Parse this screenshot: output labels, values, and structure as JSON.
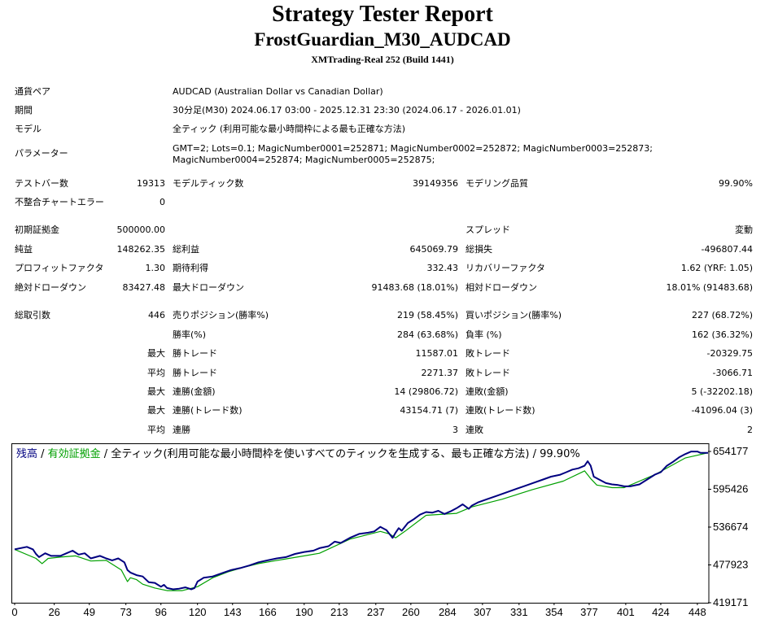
{
  "header": {
    "title": "Strategy Tester Report",
    "subtitle": "FrostGuardian_M30_AUDCAD",
    "server": "XMTrading-Real 252 (Build 1441)"
  },
  "info": {
    "symbol_label": "通貨ペア",
    "symbol": "AUDCAD (Australian Dollar vs Canadian Dollar)",
    "period_label": "期間",
    "period": "30分足(M30) 2024.06.17 03:00 - 2025.12.31 23:30 (2024.06.17 - 2026.01.01)",
    "model_label": "モデル",
    "model": "全ティック (利用可能な最小時間枠による最も正確な方法)",
    "params_label": "パラメーター",
    "params": "GMT=2; Lots=0.1; MagicNumber0001=252871; MagicNumber0002=252872; MagicNumber0003=252873; MagicNumber0004=252874; MagicNumber0005=252875;"
  },
  "stats": {
    "bars_label": "テストバー数",
    "bars": "19313",
    "ticks_label": "モデルティック数",
    "ticks": "39149356",
    "quality_label": "モデリング品質",
    "quality": "99.90%",
    "mismatch_label": "不整合チャートエラー",
    "mismatch": "0",
    "deposit_label": "初期証拠金",
    "deposit": "500000.00",
    "spread_label": "スプレッド",
    "spread": "変動",
    "net_label": "純益",
    "net": "148262.35",
    "gross_profit_label": "総利益",
    "gross_profit": "645069.79",
    "gross_loss_label": "総損失",
    "gross_loss": "-496807.44",
    "pf_label": "プロフィットファクタ",
    "pf": "1.30",
    "payoff_label": "期待利得",
    "payoff": "332.43",
    "rf_label": "リカバリーファクタ",
    "rf": "1.62 (YRF: 1.05)",
    "abs_dd_label": "絶対ドローダウン",
    "abs_dd": "83427.48",
    "max_dd_label": "最大ドローダウン",
    "max_dd": "91483.68 (18.01%)",
    "rel_dd_label": "相対ドローダウン",
    "rel_dd": "18.01% (91483.68)",
    "trades_label": "総取引数",
    "trades": "446",
    "short_label": "売りポジション(勝率%)",
    "short": "219 (58.45%)",
    "long_label": "買いポジション(勝率%)",
    "long": "227 (68.72%)",
    "win_label": "勝率(%)",
    "win": "284 (63.68%)",
    "loss_label": "負率 (%)",
    "loss": "162 (36.32%)",
    "max_word": "最大",
    "avg_word": "平均",
    "win_trade_label": "勝トレード",
    "loss_trade_label": "敗トレード",
    "max_win": "11587.01",
    "max_loss": "-20329.75",
    "avg_win": "2271.37",
    "avg_loss": "-3066.71",
    "cons_win_amt_label": "連勝(金額)",
    "cons_win_amt": "14 (29806.72)",
    "cons_loss_amt_label": "連敗(金額)",
    "cons_loss_amt": "5 (-32202.18)",
    "cons_win_max_label": "連勝(トレード数)",
    "cons_win_max": "43154.71 (7)",
    "cons_loss_max_label": "連敗(トレード数)",
    "cons_loss_max": "-41096.04 (3)",
    "cons_win_avg_label": "連勝",
    "cons_win_avg": "3",
    "cons_loss_avg_label": "連敗",
    "cons_loss_avg": "2"
  },
  "chart_data": {
    "type": "line",
    "legend": [
      "残高",
      "/",
      "有効証拠金",
      "/",
      "全ティック(利用可能な最小時間枠を使いすべてのティックを生成する、最も正確な方法)",
      "/",
      "99.90%"
    ],
    "legend_colors": [
      "#000080",
      "#000000",
      "#00a000",
      "#000000",
      "#000000",
      "#000000",
      "#000000"
    ],
    "x_ticks": [
      "0",
      "26",
      "49",
      "73",
      "96",
      "120",
      "143",
      "166",
      "190",
      "213",
      "237",
      "260",
      "284",
      "307",
      "331",
      "354",
      "377",
      "401",
      "424",
      "448"
    ],
    "y_ticks": [
      "654177",
      "595426",
      "536674",
      "477923",
      "419171"
    ],
    "ylim": [
      419171,
      654177
    ],
    "xlim": [
      0,
      455
    ],
    "series": [
      {
        "name": "残高",
        "color": "#000080",
        "x": [
          0,
          8,
          12,
          14,
          16,
          20,
          24,
          30,
          34,
          38,
          42,
          46,
          50,
          56,
          60,
          64,
          68,
          72,
          74,
          76,
          80,
          84,
          88,
          92,
          96,
          98,
          100,
          104,
          108,
          112,
          116,
          118,
          120,
          124,
          130,
          136,
          142,
          148,
          154,
          160,
          166,
          172,
          178,
          184,
          190,
          196,
          200,
          206,
          210,
          214,
          220,
          226,
          232,
          236,
          240,
          244,
          248,
          250,
          252,
          254,
          258,
          262,
          266,
          270,
          274,
          278,
          282,
          286,
          290,
          294,
          298,
          300,
          304,
          310,
          316,
          322,
          328,
          334,
          340,
          346,
          352,
          358,
          362,
          366,
          370,
          374,
          376,
          378,
          380,
          384,
          388,
          392,
          396,
          400,
          404,
          410,
          416,
          420,
          424,
          428,
          432,
          436,
          440,
          444,
          448,
          450,
          455
        ],
        "y": [
          502000,
          506000,
          502000,
          495000,
          490000,
          496000,
          492000,
          492000,
          496000,
          500000,
          494000,
          496000,
          488000,
          492000,
          488000,
          485000,
          488000,
          482000,
          470000,
          466000,
          462000,
          460000,
          451000,
          450000,
          444000,
          447000,
          442000,
          440000,
          441000,
          443000,
          440000,
          442000,
          452000,
          458000,
          460000,
          465000,
          470000,
          473000,
          477000,
          482000,
          485000,
          488000,
          490000,
          495000,
          498000,
          500000,
          504000,
          507000,
          514000,
          512000,
          520000,
          526000,
          528000,
          530000,
          537000,
          532000,
          520000,
          528000,
          535000,
          531000,
          543000,
          549000,
          556000,
          560000,
          559000,
          562000,
          557000,
          561000,
          566000,
          572000,
          565000,
          570000,
          575000,
          580000,
          585000,
          590000,
          595000,
          600000,
          605000,
          610000,
          615000,
          618000,
          622000,
          626000,
          628000,
          632000,
          639000,
          632000,
          615000,
          610000,
          605000,
          603000,
          602000,
          600000,
          600000,
          603000,
          612000,
          618000,
          622000,
          632000,
          638000,
          645000,
          650000,
          654000,
          654000,
          652000,
          652000
        ]
      },
      {
        "name": "有効証拠金",
        "color": "#00a000",
        "x": [
          0,
          14,
          18,
          22,
          30,
          40,
          50,
          60,
          70,
          74,
          76,
          80,
          84,
          92,
          100,
          110,
          120,
          130,
          140,
          150,
          160,
          170,
          180,
          200,
          220,
          240,
          246,
          250,
          256,
          270,
          290,
          300,
          320,
          340,
          360,
          374,
          378,
          382,
          392,
          400,
          420,
          440,
          455
        ],
        "y": [
          502000,
          488000,
          480000,
          488000,
          490000,
          492000,
          484000,
          485000,
          470000,
          452000,
          458000,
          455000,
          448000,
          442000,
          438000,
          438000,
          444000,
          458000,
          467000,
          474000,
          480000,
          484000,
          488000,
          496000,
          518000,
          530000,
          526000,
          520000,
          530000,
          555000,
          558000,
          568000,
          580000,
          595000,
          608000,
          624000,
          612000,
          602000,
          598000,
          598000,
          618000,
          644000,
          652000
        ]
      }
    ]
  }
}
